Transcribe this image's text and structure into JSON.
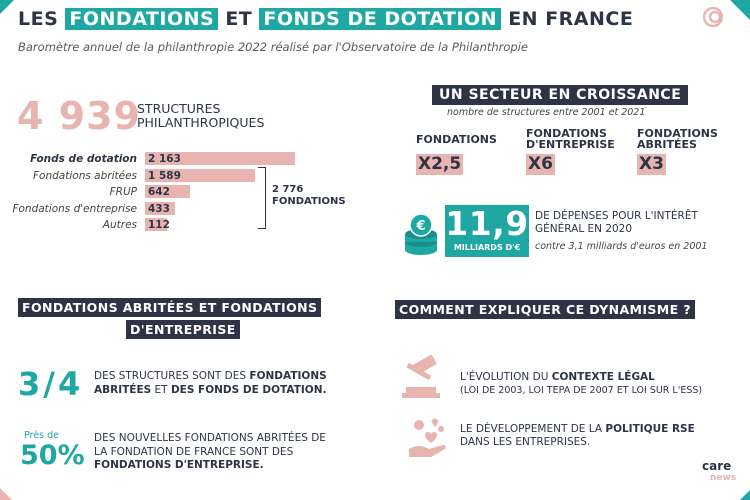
{
  "header": {
    "title_pre": "LES ",
    "title_hl1": "FONDATIONS",
    "title_mid": " ET ",
    "title_hl2": "FONDS DE DOTATION",
    "title_post": " EN FRANCE",
    "subtitle": "Baromètre annuel de la philanthropie 2022 réalisé par l'Observatoire de la Philanthropie"
  },
  "structures": {
    "total": "4 939",
    "label_line1": "STRUCTURES",
    "label_line2": "PHILANTHROPIQUES",
    "rows": [
      {
        "label": "Fonds de dotation",
        "value": "2 163",
        "n": 2163
      },
      {
        "label": "Fondations abritées",
        "value": "1 589",
        "n": 1589
      },
      {
        "label": "FRUP",
        "value": "642",
        "n": 642
      },
      {
        "label": "Fondations d'entreprise",
        "value": "433",
        "n": 433
      },
      {
        "label": "Autres",
        "value": "112",
        "n": 112
      }
    ],
    "brace_num": "2 776",
    "brace_label": "FONDATIONS"
  },
  "secteur": {
    "title": "UN SECTEUR EN CROISSANCE",
    "subtitle": "nombre de structures entre 2001 et 2021",
    "items": [
      {
        "l1": "FONDATIONS",
        "l2": "",
        "value": "X2,5"
      },
      {
        "l1": "FONDATIONS",
        "l2": "D'ENTREPRISE",
        "value": "X6"
      },
      {
        "l1": "FONDATIONS",
        "l2": "ABRITÉES",
        "value": "X3"
      }
    ]
  },
  "money": {
    "number": "11,9",
    "unit": "MILLIARDS D'€",
    "text_line1": "DE DÉPENSES POUR L'INTÉRÊT",
    "text_line2": "GÉNÉRAL EN 2020",
    "sub": "contre 3,1 milliards d'euros en 2001",
    "coin_symbol": "€"
  },
  "abritees": {
    "head_line1": "FONDATIONS ABRITÉES ET FONDATIONS",
    "head_line2": "D'ENTREPRISE",
    "fraction": "3/4",
    "t1_a": "DES STRUCTURES SONT DES ",
    "t1_b": "FONDATIONS",
    "t1_c": "ABRITÉES",
    "t1_d": " ET ",
    "t1_e": "DES FONDS DE DOTATION.",
    "pres": "Près de",
    "pct": "50%",
    "t2_l1": "DES NOUVELLES FONDATIONS ABRITÉES DE",
    "t2_l2": "LA FONDATION DE FRANCE SONT DES",
    "t2_l3": "FONDATIONS  D'ENTREPRISE."
  },
  "dynamisme": {
    "head": "COMMENT EXPLIQUER CE DYNAMISME ?",
    "r1_a": "L'ÉVOLUTION DU ",
    "r1_b": "CONTEXTE LÉGAL",
    "r1_sub": "(LOI DE 2003, LOI TEPA DE 2007 ET LOI SUR L'ESS)",
    "r2_a": "LE DÉVELOPPEMENT DE LA ",
    "r2_b": "POLITIQUE RSE",
    "r2_l2": "DANS LES ENTREPRISES."
  },
  "logo": {
    "care": "care",
    "news": "news"
  },
  "colors": {
    "teal": "#1fa8a3",
    "navy": "#2d3446",
    "pink": "#e8b4b0"
  }
}
